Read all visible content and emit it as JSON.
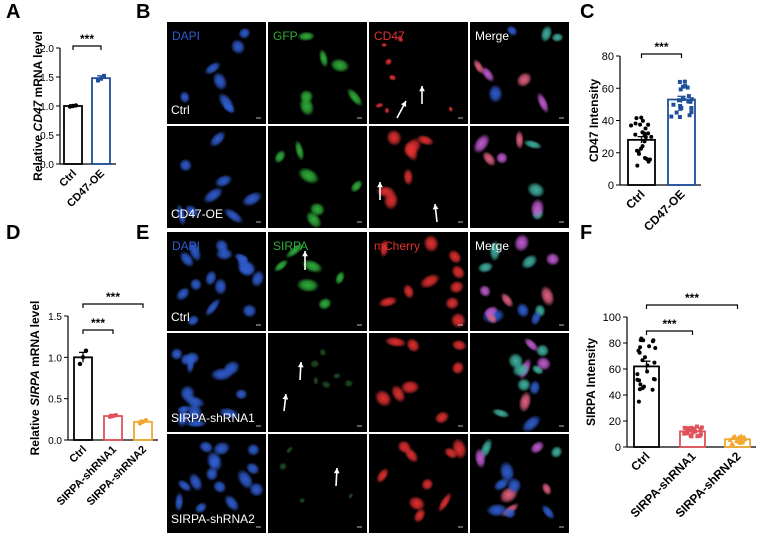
{
  "panel_labels": {
    "A": "A",
    "B": "B",
    "C": "C",
    "D": "D",
    "E": "E",
    "F": "F"
  },
  "colors": {
    "ctrl": "#000000",
    "cd47_oe": "#1f4e9a",
    "shrna1": "#e0525a",
    "shrna2": "#f0a830",
    "dapi": "#2f5ccf",
    "green": "#2fae3a",
    "red": "#e03030"
  },
  "micro_B": {
    "col_labels": [
      "DAPI",
      "GFP",
      "CD47",
      "Merge"
    ],
    "row_labels": [
      "Ctrl",
      "CD47-OE"
    ]
  },
  "micro_E": {
    "col_labels": [
      "DAPI",
      "SIRPA",
      "mCherry",
      "Merge"
    ],
    "row_labels": [
      "Ctrl",
      "SIRPA-shRNA1",
      "SIRPA-shRNA2"
    ]
  },
  "chart_data": [
    {
      "id": "A",
      "type": "bar",
      "categories": [
        "Ctrl",
        "CD47-OE"
      ],
      "values": [
        1.0,
        1.48
      ],
      "errors": [
        0.02,
        0.04
      ],
      "points": [
        [
          0.99,
          1.0,
          1.01
        ],
        [
          1.44,
          1.47,
          1.52
        ]
      ],
      "ylabel_pre": "Relative ",
      "ylabel_it": "CD47",
      "ylabel_post": " mRNA level",
      "yticks": [
        "0.0",
        "0.5",
        "1.0",
        "1.5",
        "2.0"
      ],
      "ylim": [
        0,
        2.0
      ],
      "sig": [
        "***"
      ]
    },
    {
      "id": "C",
      "type": "bar",
      "categories": [
        "Ctrl",
        "CD47-OE"
      ],
      "values": [
        28,
        53
      ],
      "errors": [
        2,
        2
      ],
      "ylabel": "CD47 Intensity",
      "yticks": [
        "0",
        "20",
        "40",
        "60",
        "80"
      ],
      "ylim": [
        0,
        80
      ],
      "sig": [
        "***"
      ]
    },
    {
      "id": "D",
      "type": "bar",
      "categories": [
        "Ctrl",
        "SIRPA-shRNA1",
        "SIRPA-shRNA2"
      ],
      "values": [
        1.0,
        0.29,
        0.22
      ],
      "errors": [
        0.06,
        0.02,
        0.02
      ],
      "points": [
        [
          0.92,
          1.0,
          1.08
        ],
        [
          0.28,
          0.29,
          0.3
        ],
        [
          0.2,
          0.22,
          0.24
        ]
      ],
      "ylabel_pre": "Relative ",
      "ylabel_it": "SIRPA",
      "ylabel_post": " mRNA level",
      "yticks": [
        "0.0",
        "0.5",
        "1.0",
        "1.5"
      ],
      "ylim": [
        0,
        1.5
      ],
      "sig": [
        "***",
        "***"
      ]
    },
    {
      "id": "F",
      "type": "bar",
      "categories": [
        "Ctrl",
        "SIRPA-shRNA1",
        "SIRPA-shRNA2"
      ],
      "values": [
        62,
        12,
        6
      ],
      "errors": [
        4,
        1.5,
        1
      ],
      "ylabel": "SIRPA Intensity",
      "yticks": [
        "0",
        "20",
        "40",
        "60",
        "80",
        "100"
      ],
      "ylim": [
        0,
        100
      ],
      "sig": [
        "***",
        "***"
      ]
    }
  ]
}
